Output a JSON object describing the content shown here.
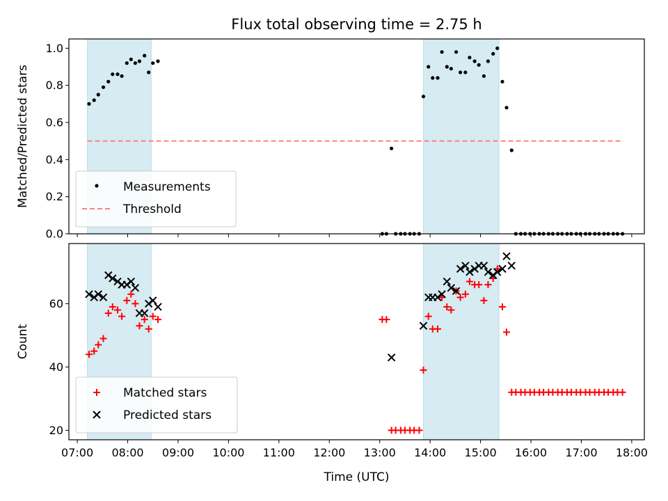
{
  "chart_data": [
    {
      "type": "scatter",
      "title": "Flux total observing time = 2.75 h",
      "xlabel": "",
      "ylabel": "Matched/Predicted stars",
      "ylim": [
        0,
        1.05
      ],
      "yticks": [
        "0.0",
        "0.2",
        "0.4",
        "0.6",
        "0.8",
        "1.0"
      ],
      "ytick_values": [
        0,
        0.2,
        0.4,
        0.6,
        0.8,
        1.0
      ],
      "xlim": [
        "06:50",
        "18:15"
      ],
      "shaded_intervals": [
        [
          "07:12",
          "08:28"
        ],
        [
          "13:52",
          "15:22"
        ]
      ],
      "legend": {
        "position": "lower-left",
        "entries": [
          "Measurements",
          "Threshold"
        ]
      },
      "threshold": {
        "name": "Threshold",
        "value": 0.5,
        "x_range": [
          "07:12",
          "17:50"
        ],
        "color": "#ff7f7f"
      },
      "series": [
        {
          "name": "Measurements",
          "color": "#000000",
          "points": [
            [
              "07:14",
              0.7
            ],
            [
              "07:20",
              0.72
            ],
            [
              "07:25",
              0.75
            ],
            [
              "07:31",
              0.79
            ],
            [
              "07:37",
              0.82
            ],
            [
              "07:42",
              0.86
            ],
            [
              "07:48",
              0.86
            ],
            [
              "07:53",
              0.85
            ],
            [
              "07:59",
              0.92
            ],
            [
              "08:04",
              0.94
            ],
            [
              "08:09",
              0.92
            ],
            [
              "08:14",
              0.93
            ],
            [
              "08:20",
              0.96
            ],
            [
              "08:25",
              0.87
            ],
            [
              "08:30",
              0.92
            ],
            [
              "08:36",
              0.93
            ],
            [
              "13:03",
              0.0
            ],
            [
              "13:08",
              0.0
            ],
            [
              "13:14",
              0.46
            ],
            [
              "13:19",
              0.0
            ],
            [
              "13:25",
              0.0
            ],
            [
              "13:30",
              0.0
            ],
            [
              "13:36",
              0.0
            ],
            [
              "13:41",
              0.0
            ],
            [
              "13:47",
              0.0
            ],
            [
              "13:52",
              0.74
            ],
            [
              "13:58",
              0.9
            ],
            [
              "14:03",
              0.84
            ],
            [
              "14:09",
              0.84
            ],
            [
              "14:14",
              0.98
            ],
            [
              "14:20",
              0.9
            ],
            [
              "14:25",
              0.89
            ],
            [
              "14:31",
              0.98
            ],
            [
              "14:36",
              0.87
            ],
            [
              "14:42",
              0.87
            ],
            [
              "14:47",
              0.95
            ],
            [
              "14:53",
              0.93
            ],
            [
              "14:58",
              0.91
            ],
            [
              "15:04",
              0.85
            ],
            [
              "15:09",
              0.93
            ],
            [
              "15:15",
              0.97
            ],
            [
              "15:20",
              1.0
            ],
            [
              "15:26",
              0.82
            ],
            [
              "15:31",
              0.68
            ],
            [
              "15:37",
              0.45
            ],
            [
              "15:42",
              0.0
            ],
            [
              "15:48",
              0.0
            ],
            [
              "15:53",
              0.0
            ],
            [
              "15:59",
              0.0
            ],
            [
              "16:04",
              0.0
            ],
            [
              "16:10",
              0.0
            ],
            [
              "16:15",
              0.0
            ],
            [
              "16:21",
              0.0
            ],
            [
              "16:26",
              0.0
            ],
            [
              "16:32",
              0.0
            ],
            [
              "16:37",
              0.0
            ],
            [
              "16:43",
              0.0
            ],
            [
              "16:48",
              0.0
            ],
            [
              "16:54",
              0.0
            ],
            [
              "16:59",
              0.0
            ],
            [
              "17:05",
              0.0
            ],
            [
              "17:10",
              0.0
            ],
            [
              "17:16",
              0.0
            ],
            [
              "17:21",
              0.0
            ],
            [
              "17:27",
              0.0
            ],
            [
              "17:32",
              0.0
            ],
            [
              "17:38",
              0.0
            ],
            [
              "17:43",
              0.0
            ],
            [
              "17:49",
              0.0
            ]
          ]
        }
      ]
    },
    {
      "type": "scatter",
      "xlabel": "Time (UTC)",
      "ylabel": "Count",
      "ylim": [
        17,
        79
      ],
      "yticks": [
        "20",
        "40",
        "60"
      ],
      "ytick_values": [
        20,
        40,
        60
      ],
      "xlim": [
        "06:50",
        "18:15"
      ],
      "xticks": [
        "07:00",
        "08:00",
        "09:00",
        "10:00",
        "11:00",
        "12:00",
        "13:00",
        "14:00",
        "15:00",
        "16:00",
        "17:00",
        "18:00"
      ],
      "shaded_intervals": [
        [
          "07:12",
          "08:28"
        ],
        [
          "13:52",
          "15:22"
        ]
      ],
      "legend": {
        "position": "lower-left",
        "entries": [
          "Matched stars",
          "Predicted stars"
        ]
      },
      "series": [
        {
          "name": "Matched stars",
          "marker": "plus",
          "color": "#ff0000",
          "points": [
            [
              "07:14",
              44
            ],
            [
              "07:20",
              45
            ],
            [
              "07:25",
              47
            ],
            [
              "07:31",
              49
            ],
            [
              "07:37",
              57
            ],
            [
              "07:42",
              59
            ],
            [
              "07:48",
              58
            ],
            [
              "07:53",
              56
            ],
            [
              "07:59",
              61
            ],
            [
              "08:04",
              63
            ],
            [
              "08:09",
              60
            ],
            [
              "08:14",
              53
            ],
            [
              "08:20",
              55
            ],
            [
              "08:25",
              52
            ],
            [
              "08:30",
              56
            ],
            [
              "08:36",
              55
            ],
            [
              "13:03",
              55
            ],
            [
              "13:08",
              55
            ],
            [
              "13:14",
              20
            ],
            [
              "13:19",
              20
            ],
            [
              "13:25",
              20
            ],
            [
              "13:30",
              20
            ],
            [
              "13:36",
              20
            ],
            [
              "13:41",
              20
            ],
            [
              "13:47",
              20
            ],
            [
              "13:52",
              39
            ],
            [
              "13:58",
              56
            ],
            [
              "14:03",
              52
            ],
            [
              "14:09",
              52
            ],
            [
              "14:14",
              62
            ],
            [
              "14:20",
              59
            ],
            [
              "14:25",
              58
            ],
            [
              "14:31",
              64
            ],
            [
              "14:36",
              62
            ],
            [
              "14:42",
              63
            ],
            [
              "14:47",
              67
            ],
            [
              "14:53",
              66
            ],
            [
              "14:58",
              66
            ],
            [
              "15:04",
              61
            ],
            [
              "15:09",
              66
            ],
            [
              "15:15",
              68
            ],
            [
              "15:20",
              71
            ],
            [
              "15:26",
              59
            ],
            [
              "15:31",
              51
            ],
            [
              "15:37",
              32
            ],
            [
              "15:42",
              32
            ],
            [
              "15:48",
              32
            ],
            [
              "15:53",
              32
            ],
            [
              "15:59",
              32
            ],
            [
              "16:04",
              32
            ],
            [
              "16:10",
              32
            ],
            [
              "16:15",
              32
            ],
            [
              "16:21",
              32
            ],
            [
              "16:26",
              32
            ],
            [
              "16:32",
              32
            ],
            [
              "16:37",
              32
            ],
            [
              "16:43",
              32
            ],
            [
              "16:48",
              32
            ],
            [
              "16:54",
              32
            ],
            [
              "16:59",
              32
            ],
            [
              "17:05",
              32
            ],
            [
              "17:10",
              32
            ],
            [
              "17:16",
              32
            ],
            [
              "17:21",
              32
            ],
            [
              "17:27",
              32
            ],
            [
              "17:32",
              32
            ],
            [
              "17:38",
              32
            ],
            [
              "17:43",
              32
            ],
            [
              "17:49",
              32
            ]
          ]
        },
        {
          "name": "Predicted stars",
          "marker": "x",
          "color": "#000000",
          "points": [
            [
              "07:14",
              63
            ],
            [
              "07:20",
              62
            ],
            [
              "07:25",
              63
            ],
            [
              "07:31",
              62
            ],
            [
              "07:37",
              69
            ],
            [
              "07:42",
              68
            ],
            [
              "07:48",
              67
            ],
            [
              "07:53",
              66
            ],
            [
              "07:59",
              66
            ],
            [
              "08:04",
              67
            ],
            [
              "08:09",
              65
            ],
            [
              "08:14",
              57
            ],
            [
              "08:20",
              57
            ],
            [
              "08:25",
              60
            ],
            [
              "08:30",
              61
            ],
            [
              "08:36",
              59
            ],
            [
              "13:14",
              43
            ],
            [
              "13:52",
              53
            ],
            [
              "13:58",
              62
            ],
            [
              "14:03",
              62
            ],
            [
              "14:09",
              62
            ],
            [
              "14:14",
              63
            ],
            [
              "14:20",
              67
            ],
            [
              "14:25",
              65
            ],
            [
              "14:31",
              64
            ],
            [
              "14:36",
              71
            ],
            [
              "14:42",
              72
            ],
            [
              "14:47",
              70
            ],
            [
              "14:53",
              71
            ],
            [
              "14:58",
              72
            ],
            [
              "15:04",
              72
            ],
            [
              "15:09",
              70
            ],
            [
              "15:15",
              69
            ],
            [
              "15:20",
              70
            ],
            [
              "15:26",
              71
            ],
            [
              "15:31",
              75
            ],
            [
              "15:37",
              72
            ]
          ]
        }
      ]
    }
  ]
}
